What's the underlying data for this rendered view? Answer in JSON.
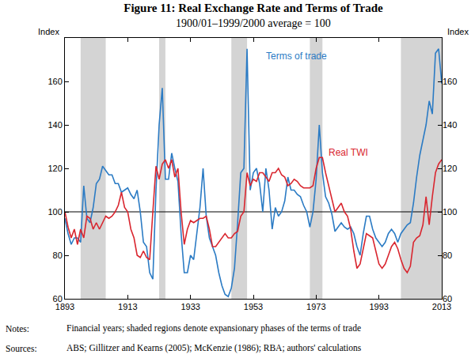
{
  "chart_data": {
    "type": "line",
    "title": "Figure 11: Real Exchange Rate and Terms of Trade",
    "subtitle": "1900/01–1999/2000 average = 100",
    "y_label": "Index",
    "y2_label": "Index",
    "x": [
      1893,
      1894,
      1895,
      1896,
      1897,
      1898,
      1899,
      1900,
      1901,
      1902,
      1903,
      1904,
      1905,
      1906,
      1907,
      1908,
      1909,
      1910,
      1911,
      1912,
      1913,
      1914,
      1915,
      1916,
      1917,
      1918,
      1919,
      1920,
      1921,
      1922,
      1923,
      1924,
      1925,
      1926,
      1927,
      1928,
      1929,
      1930,
      1931,
      1932,
      1933,
      1934,
      1935,
      1936,
      1937,
      1938,
      1939,
      1940,
      1941,
      1942,
      1943,
      1944,
      1945,
      1946,
      1947,
      1948,
      1949,
      1950,
      1951,
      1952,
      1953,
      1954,
      1955,
      1956,
      1957,
      1958,
      1959,
      1960,
      1961,
      1962,
      1963,
      1964,
      1965,
      1966,
      1967,
      1968,
      1969,
      1970,
      1971,
      1972,
      1973,
      1974,
      1975,
      1976,
      1977,
      1978,
      1979,
      1980,
      1981,
      1982,
      1983,
      1984,
      1985,
      1986,
      1987,
      1988,
      1989,
      1990,
      1991,
      1992,
      1993,
      1994,
      1995,
      1996,
      1997,
      1998,
      1999,
      2000,
      2001,
      2002,
      2003,
      2004,
      2005,
      2006,
      2007,
      2008,
      2009,
      2010,
      2011,
      2012,
      2013
    ],
    "series": [
      {
        "name": "Terms of trade",
        "color": "#2b7bc4",
        "line_style": "solid",
        "values": [
          97,
          90,
          85,
          88,
          88,
          86,
          112,
          97,
          95,
          102,
          113,
          115,
          121,
          119,
          117,
          117,
          113,
          113,
          109,
          110,
          111,
          108,
          106,
          110,
          100,
          86,
          84,
          72,
          69,
          110,
          140,
          157,
          115,
          115,
          127,
          120,
          114,
          90,
          72,
          72,
          80,
          78,
          90,
          102,
          120,
          98,
          88,
          84,
          80,
          72,
          66,
          62,
          61,
          65,
          74,
          95,
          118,
          120,
          175,
          110,
          118,
          120,
          113,
          100,
          120,
          110,
          92,
          102,
          98,
          100,
          105,
          116,
          110,
          110,
          108,
          107,
          103,
          100,
          93,
          100,
          115,
          140,
          118,
          107,
          104,
          99,
          91,
          93,
          95,
          93,
          92,
          93,
          90,
          84,
          80,
          90,
          98,
          98,
          92,
          88,
          86,
          84,
          86,
          90,
          92,
          90,
          86,
          90,
          92,
          94,
          95,
          104,
          116,
          126,
          133,
          140,
          151,
          145,
          173,
          175,
          159
        ]
      },
      {
        "name": "Real TWI",
        "color": "#d9262f",
        "line_style": "solid",
        "values": [
          100,
          93,
          88,
          92,
          85,
          92,
          88,
          98,
          97,
          92,
          95,
          92,
          95,
          98,
          97,
          98,
          100,
          103,
          109,
          102,
          100,
          92,
          88,
          80,
          79,
          82,
          79,
          78,
          100,
          121,
          115,
          122,
          124,
          120,
          124,
          116,
          120,
          100,
          85,
          92,
          96,
          95,
          96,
          97,
          97,
          98,
          92,
          84,
          84,
          86,
          88,
          90,
          88,
          88,
          90,
          91,
          98,
          100,
          118,
          112,
          115,
          114,
          118,
          118,
          116,
          114,
          118,
          118,
          120,
          117,
          116,
          112,
          113,
          115,
          114,
          112,
          111,
          111,
          111,
          112,
          120,
          125,
          125,
          118,
          112,
          106,
          100,
          102,
          104,
          100,
          98,
          92,
          82,
          74,
          76,
          83,
          90,
          89,
          88,
          82,
          76,
          74,
          76,
          80,
          84,
          86,
          83,
          78,
          74,
          72,
          75,
          86,
          88,
          89,
          94,
          107,
          94,
          107,
          118,
          122,
          124
        ]
      }
    ],
    "xlim": [
      1893,
      2013
    ],
    "xticks": [
      1893,
      1913,
      1933,
      1953,
      1973,
      1993,
      2013
    ],
    "ylim": [
      60,
      180
    ],
    "yticks": [
      60,
      80,
      100,
      120,
      140,
      160
    ],
    "y2lim": [
      60,
      180
    ],
    "y2ticks": [
      60,
      80,
      100,
      120,
      140,
      160
    ],
    "reference_line": 100,
    "shaded_regions": [
      {
        "start": 1898,
        "end": 1906
      },
      {
        "start": 1923,
        "end": 1925
      },
      {
        "start": 1946,
        "end": 1951
      },
      {
        "start": 1971,
        "end": 1975
      },
      {
        "start": 2000,
        "end": 2013
      }
    ],
    "notes": {
      "label": "Notes:",
      "text": "Financial years; shaded regions denote expansionary phases of the terms of trade"
    },
    "sources": {
      "label": "Sources:",
      "text": "ABS; Gillitzer and Kearns (2005); McKenzie (1986); RBA; authors' calculations"
    },
    "grid": false
  }
}
